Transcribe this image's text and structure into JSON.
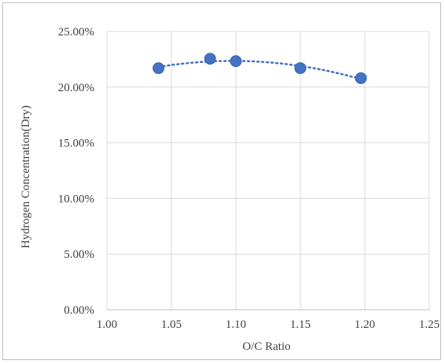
{
  "chart_data": {
    "type": "scatter",
    "xlabel": "O/C Ratio",
    "ylabel": "Hydrogen Concentration(Dry)",
    "xlim": [
      1.0,
      1.25
    ],
    "ylim": [
      0,
      0.25
    ],
    "x_ticks": [
      1.0,
      1.05,
      1.1,
      1.15,
      1.2,
      1.25
    ],
    "x_tick_labels": [
      "1.00",
      "1.05",
      "1.10",
      "1.15",
      "1.20",
      "1.25"
    ],
    "y_ticks": [
      0,
      0.05,
      0.1,
      0.15,
      0.2,
      0.25
    ],
    "y_tick_labels": [
      "0.00%",
      "5.00%",
      "10.00%",
      "15.00%",
      "20.00%",
      "25.00%"
    ],
    "grid": true,
    "trendline": "polynomial",
    "series": [
      {
        "color": "#4472c4",
        "points": [
          {
            "x": 1.04,
            "y": 0.217
          },
          {
            "x": 1.08,
            "y": 0.2255
          },
          {
            "x": 1.1,
            "y": 0.2233
          },
          {
            "x": 1.15,
            "y": 0.217
          },
          {
            "x": 1.197,
            "y": 0.208
          }
        ]
      }
    ]
  }
}
